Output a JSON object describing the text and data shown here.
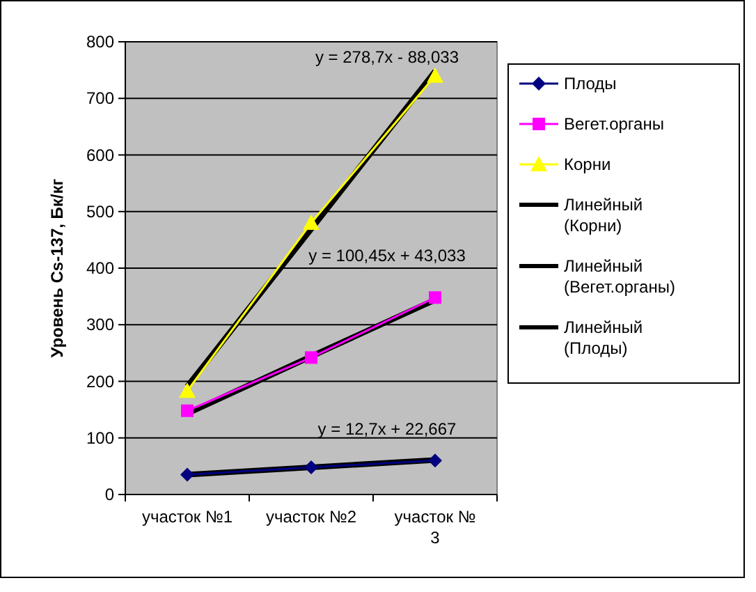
{
  "chart_data": {
    "type": "line",
    "ylabel": "Уровень Cs-137, Бк/кг",
    "categories": [
      "участок №1",
      "участок №2",
      "участок № 3"
    ],
    "ylim": [
      0,
      800
    ],
    "yticks": [
      0,
      100,
      200,
      300,
      400,
      500,
      600,
      700,
      800
    ],
    "grid": "y",
    "legend": "right",
    "series": [
      {
        "name": "Плоды",
        "color": "#000080",
        "marker": "diamond",
        "values": [
          35,
          48,
          60
        ]
      },
      {
        "name": "Вегет.органы",
        "color": "#ff00ff",
        "marker": "square",
        "values": [
          148,
          242,
          348
        ]
      },
      {
        "name": "Корни",
        "color": "#ffff00",
        "marker": "triangle",
        "values": [
          183,
          480,
          740
        ]
      },
      {
        "name": "Линейный (Корни)",
        "color": "#000000",
        "marker": "none",
        "values": [
          191,
          469,
          748
        ]
      },
      {
        "name": "Линейный (Вегет.органы)",
        "color": "#000000",
        "marker": "none",
        "values": [
          143,
          244,
          344
        ]
      },
      {
        "name": "Линейный (Плоды)",
        "color": "#000000",
        "marker": "none",
        "values": [
          35,
          48,
          61
        ]
      }
    ],
    "annotations": [
      "y = 278,7x - 88,033",
      "y = 100,45x + 43,033",
      "y = 12,7x + 22,667"
    ]
  }
}
